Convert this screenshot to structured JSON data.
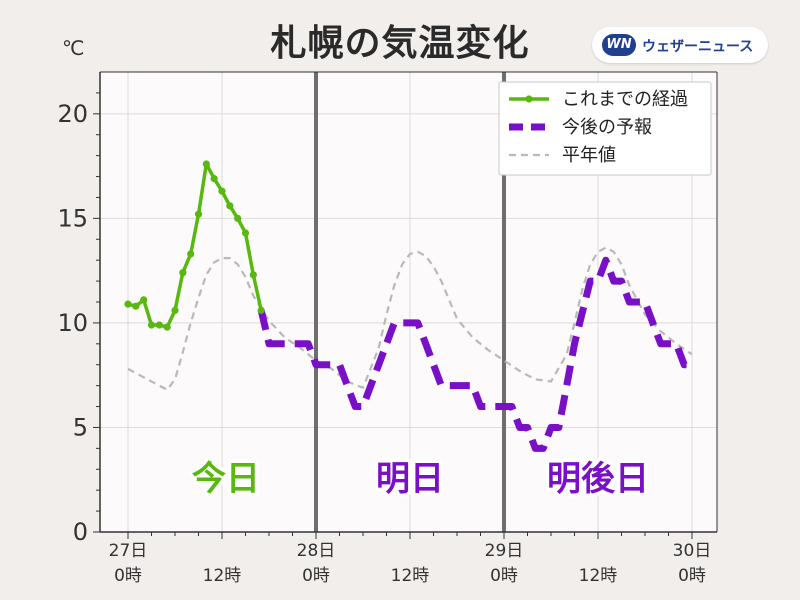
{
  "title": "札幌の気温変化",
  "unit": "℃",
  "brand": {
    "logo": "WN",
    "name": "ウェザーニュース"
  },
  "colors": {
    "observed": "#58b80f",
    "forecast": "#7a0fc8",
    "normal": "#b9b9b9",
    "grid": "#dcdcdc",
    "divider": "#6e6e6e",
    "plot_bg": "#fcfafb"
  },
  "chart_data": {
    "type": "line",
    "title": "札幌の気温変化",
    "ylabel": "℃",
    "ylim": [
      0,
      22
    ],
    "xlim": [
      0,
      72
    ],
    "yticks": [
      0,
      5,
      10,
      15,
      20
    ],
    "xticks": [
      {
        "x": 0,
        "day": "27日",
        "hour": "0時"
      },
      {
        "x": 12,
        "day": "",
        "hour": "12時"
      },
      {
        "x": 24,
        "day": "28日",
        "hour": "0時"
      },
      {
        "x": 36,
        "day": "",
        "hour": "12時"
      },
      {
        "x": 48,
        "day": "29日",
        "hour": "0時"
      },
      {
        "x": 60,
        "day": "",
        "hour": "12時"
      },
      {
        "x": 72,
        "day": "30日",
        "hour": "0時"
      }
    ],
    "day_dividers": [
      24,
      48
    ],
    "day_labels": [
      {
        "text": "今日",
        "x": 12.5,
        "series": "observed"
      },
      {
        "text": "明日",
        "x": 36,
        "series": "forecast"
      },
      {
        "text": "明後日",
        "x": 60,
        "series": "forecast"
      }
    ],
    "grid": true,
    "legend": "top-right",
    "series": [
      {
        "key": "observed",
        "name": "これまでの経過",
        "style": "solid-markers",
        "x": [
          0,
          1,
          2,
          3,
          4,
          5,
          6,
          7,
          8,
          9,
          10,
          11,
          12,
          13,
          14,
          15,
          16,
          17
        ],
        "y": [
          10.9,
          10.8,
          11.1,
          9.9,
          9.9,
          9.8,
          10.6,
          12.4,
          13.3,
          15.2,
          17.6,
          16.9,
          16.3,
          15.6,
          15.0,
          14.3,
          12.3,
          10.6
        ]
      },
      {
        "key": "forecast",
        "name": "今後の予報",
        "style": "thick-dash",
        "x": [
          17,
          18,
          19,
          20,
          21,
          22,
          23,
          24,
          25,
          26,
          27,
          28,
          29,
          30,
          31,
          32,
          33,
          34,
          35,
          36,
          37,
          38,
          39,
          40,
          41,
          42,
          43,
          44,
          45,
          46,
          47,
          48,
          49,
          50,
          51,
          52,
          53,
          54,
          55,
          56,
          57,
          58,
          59,
          60,
          61,
          62,
          63,
          64,
          65,
          66,
          67,
          68,
          69,
          70,
          71,
          72
        ],
        "y": [
          10.6,
          9,
          9,
          9,
          9,
          9,
          9,
          8,
          8,
          8,
          8,
          7,
          6,
          6,
          7,
          8,
          9,
          10,
          10,
          10,
          10,
          9,
          8,
          7,
          7,
          7,
          7,
          7,
          6,
          6,
          6,
          6,
          6,
          5,
          5,
          4,
          4,
          5,
          5,
          7,
          9,
          10.5,
          12,
          12,
          13,
          12,
          12,
          11,
          11,
          11,
          10,
          9,
          9,
          9,
          8,
          8
        ]
      },
      {
        "key": "normal",
        "name": "平年値",
        "style": "thin-dash",
        "x": [
          0,
          2,
          4,
          5,
          6,
          7,
          8,
          9,
          10,
          11,
          12,
          13,
          14,
          15,
          16,
          18,
          20,
          22,
          24,
          26,
          28,
          30,
          32,
          33,
          34,
          35,
          36,
          37,
          38,
          39,
          40,
          42,
          44,
          46,
          48,
          50,
          52,
          54,
          56,
          57,
          58,
          59,
          60,
          61,
          62,
          63,
          64,
          66,
          68,
          70,
          72
        ],
        "y": [
          7.8,
          7.4,
          7.0,
          6.8,
          7.3,
          8.6,
          10.0,
          11.2,
          12.3,
          12.9,
          13.1,
          13.1,
          12.8,
          12.2,
          11.3,
          10.1,
          9.3,
          8.8,
          8.2,
          7.8,
          7.2,
          6.9,
          8.8,
          10.4,
          11.8,
          12.8,
          13.3,
          13.4,
          13.2,
          12.7,
          12.0,
          10.2,
          9.3,
          8.7,
          8.2,
          7.7,
          7.3,
          7.2,
          8.5,
          10.0,
          11.6,
          12.8,
          13.4,
          13.6,
          13.4,
          12.8,
          11.8,
          10.4,
          9.6,
          9.0,
          8.5
        ]
      }
    ]
  }
}
